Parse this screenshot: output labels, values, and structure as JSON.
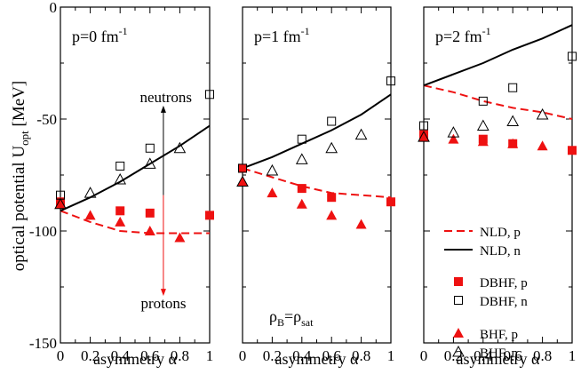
{
  "chart_data": [
    {
      "type": "line",
      "panel_label": "p=0 fm",
      "panel_label_sup": "-1",
      "xlabel": "asymmetry α",
      "xlim": [
        0,
        1
      ],
      "ylim": [
        -150,
        0
      ],
      "x_ticks": [
        0,
        0.2,
        0.4,
        0.6,
        0.8,
        1
      ],
      "x_tick_labels": [
        "0",
        "0.2",
        "0.4",
        "0.6",
        "0.8",
        "1"
      ],
      "y_ticks": [
        0,
        -50,
        -100,
        -150
      ],
      "y_tick_labels": [
        "0",
        "-50",
        "-100",
        "-150"
      ],
      "annotations": {
        "neutrons_label": "neutrons",
        "protons_label": "protons",
        "arrow_x": 0.69,
        "arrow_from": -84,
        "arrow_up_to": -44,
        "arrow_down_to": -129
      },
      "series": [
        {
          "name": "NLD, p",
          "style": "dashed-red",
          "x": [
            0,
            0.2,
            0.4,
            0.6,
            0.8,
            1
          ],
          "y": [
            -91,
            -96,
            -100,
            -101,
            -101,
            -101
          ]
        },
        {
          "name": "NLD, n",
          "style": "solid-black",
          "x": [
            0,
            0.2,
            0.4,
            0.6,
            0.8,
            1
          ],
          "y": [
            -91,
            -85,
            -78,
            -70,
            -62,
            -53
          ]
        },
        {
          "name": "DBHF, p",
          "style": "filled-square-red",
          "x": [
            0,
            0.4,
            0.6,
            1
          ],
          "y": [
            -87,
            -91,
            -92,
            -93
          ]
        },
        {
          "name": "DBHF, n",
          "style": "open-square-black",
          "x": [
            0,
            0.4,
            0.6,
            1
          ],
          "y": [
            -84,
            -71,
            -63,
            -39
          ]
        },
        {
          "name": "BHF, p",
          "style": "filled-triangle-red",
          "x": [
            0,
            0.2,
            0.4,
            0.6,
            0.8
          ],
          "y": [
            -88,
            -93,
            -96,
            -100,
            -103
          ]
        },
        {
          "name": "BHF, n",
          "style": "open-triangle-black",
          "x": [
            0,
            0.2,
            0.4,
            0.6,
            0.8
          ],
          "y": [
            -88,
            -83,
            -77,
            -70,
            -63
          ]
        }
      ]
    },
    {
      "type": "line",
      "panel_label": "p=1 fm",
      "panel_label_sup": "-1",
      "xlabel": "asymmetry α",
      "xlim": [
        0,
        1
      ],
      "ylim": [
        -150,
        0
      ],
      "x_ticks": [
        0,
        0.2,
        0.4,
        0.6,
        0.8,
        1
      ],
      "x_tick_labels": [
        "0",
        "0.2",
        "0.4",
        "0.6",
        "0.8",
        "1"
      ],
      "annotations": {
        "rho_label_main": "ρ",
        "rho_label_sub1": "B",
        "rho_label_eq": "=ρ",
        "rho_label_sub2": "sat"
      },
      "series": [
        {
          "name": "NLD, p",
          "style": "dashed-red",
          "x": [
            0,
            0.2,
            0.4,
            0.6,
            0.8,
            1
          ],
          "y": [
            -72,
            -76,
            -80,
            -83,
            -84,
            -85
          ]
        },
        {
          "name": "NLD, n",
          "style": "solid-black",
          "x": [
            0,
            0.2,
            0.4,
            0.6,
            0.8,
            1
          ],
          "y": [
            -72,
            -67,
            -61,
            -55,
            -48,
            -39
          ]
        },
        {
          "name": "DBHF, p",
          "style": "filled-square-red",
          "x": [
            0,
            0.4,
            0.6,
            1
          ],
          "y": [
            -72,
            -81,
            -85,
            -87
          ]
        },
        {
          "name": "DBHF, n",
          "style": "open-square-black",
          "x": [
            0,
            0.4,
            0.6,
            1
          ],
          "y": [
            -72,
            -59,
            -51,
            -33
          ]
        },
        {
          "name": "BHF, p",
          "style": "filled-triangle-red",
          "x": [
            0,
            0.2,
            0.4,
            0.6,
            0.8
          ],
          "y": [
            -78,
            -83,
            -88,
            -93,
            -97
          ]
        },
        {
          "name": "BHF, n",
          "style": "open-triangle-black",
          "x": [
            0,
            0.2,
            0.4,
            0.6,
            0.8
          ],
          "y": [
            -78,
            -73,
            -68,
            -63,
            -57
          ]
        }
      ]
    },
    {
      "type": "line",
      "panel_label": "p=2 fm",
      "panel_label_sup": "-1",
      "xlabel": "asymmetry α",
      "xlim": [
        0,
        1
      ],
      "ylim": [
        -150,
        0
      ],
      "x_ticks": [
        0,
        0.2,
        0.4,
        0.6,
        0.8,
        1
      ],
      "x_tick_labels": [
        "0",
        "0.2",
        "0.4",
        "0.6",
        "0.8",
        "1"
      ],
      "legend_position": "bottom-right",
      "series": [
        {
          "name": "NLD, p",
          "style": "dashed-red",
          "x": [
            0,
            0.2,
            0.4,
            0.6,
            0.8,
            1
          ],
          "y": [
            -35,
            -38,
            -42,
            -45,
            -47,
            -50
          ]
        },
        {
          "name": "NLD, n",
          "style": "solid-black",
          "x": [
            0,
            0.2,
            0.4,
            0.6,
            0.8,
            1
          ],
          "y": [
            -35,
            -30,
            -25,
            -19,
            -14,
            -8
          ]
        },
        {
          "name": "DBHF, p",
          "style": "filled-square-red",
          "x": [
            0,
            0.4,
            0.6,
            1
          ],
          "y": [
            -57,
            -59,
            -61,
            -64
          ]
        },
        {
          "name": "DBHF, n",
          "style": "open-square-black",
          "x": [
            0,
            0.4,
            0.6,
            1
          ],
          "y": [
            -53,
            -42,
            -36,
            -22
          ]
        },
        {
          "name": "BHF, p",
          "style": "filled-triangle-red",
          "x": [
            0,
            0.2,
            0.4,
            0.6,
            0.8
          ],
          "y": [
            -58,
            -59,
            -60,
            -61,
            -62
          ]
        },
        {
          "name": "BHF, n",
          "style": "open-triangle-black",
          "x": [
            0,
            0.2,
            0.4,
            0.6,
            0.8
          ],
          "y": [
            -58,
            -56,
            -53,
            -51,
            -48
          ]
        }
      ]
    }
  ],
  "shared": {
    "ylabel_main": "optical potential U",
    "ylabel_sub": "opt",
    "ylabel_unit": " [MeV]"
  },
  "legend": [
    {
      "label": "NLD, p",
      "style": "dashed-red"
    },
    {
      "label": "NLD, n",
      "style": "solid-black"
    },
    {
      "label": "DBHF, p",
      "style": "filled-square-red"
    },
    {
      "label": "DBHF, n",
      "style": "open-square-black"
    },
    {
      "label": "BHF, p",
      "style": "filled-triangle-red"
    },
    {
      "label": "BHF, n",
      "style": "open-triangle-black"
    }
  ],
  "colors": {
    "red": "#ee1111",
    "black": "#000000"
  }
}
